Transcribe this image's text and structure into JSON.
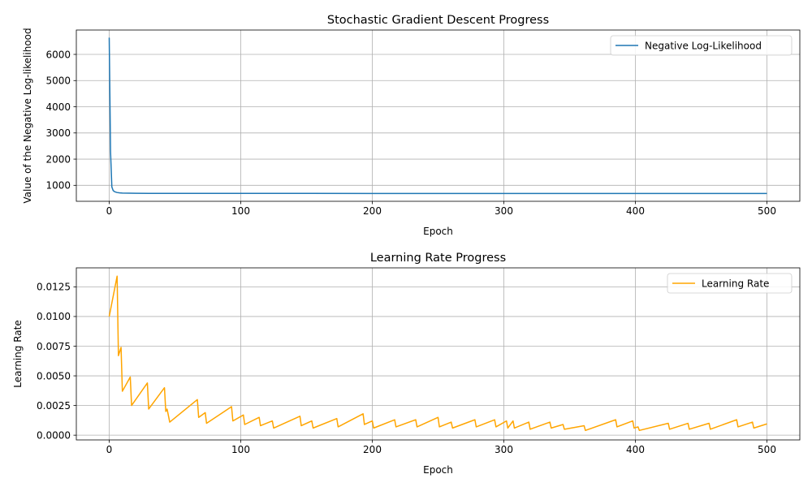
{
  "chart_data": [
    {
      "type": "line",
      "title": "Stochastic Gradient Descent Progress",
      "xlabel": "Epoch",
      "ylabel": "Value of the Negative Log-likelihood",
      "xlim": [
        -25,
        525
      ],
      "ylim": [
        390,
        6930
      ],
      "xticks": [
        0,
        100,
        200,
        300,
        400,
        500
      ],
      "xtick_labels": [
        "0",
        "100",
        "200",
        "300",
        "400",
        "500"
      ],
      "yticks": [
        1000,
        2000,
        3000,
        4000,
        5000,
        6000
      ],
      "ytick_labels": [
        "1000",
        "2000",
        "3000",
        "4000",
        "5000",
        "6000"
      ],
      "grid": true,
      "legend_position": "top-right",
      "series": [
        {
          "name": "Negative Log-Likelihood",
          "color": "#1f77b4",
          "x": [
            0,
            1,
            2,
            3,
            4,
            5,
            6,
            8,
            10,
            15,
            20,
            30,
            50,
            100,
            200,
            300,
            400,
            500
          ],
          "y": [
            6640,
            2300,
            940,
            800,
            760,
            740,
            725,
            712,
            705,
            698,
            695,
            693,
            692,
            691,
            690,
            690,
            690,
            690
          ]
        }
      ]
    },
    {
      "type": "line",
      "title": "Learning Rate Progress",
      "xlabel": "Epoch",
      "ylabel": "Learning Rate",
      "xlim": [
        -25,
        525
      ],
      "ylim": [
        -0.0004,
        0.0141
      ],
      "xticks": [
        0,
        100,
        200,
        300,
        400,
        500
      ],
      "xtick_labels": [
        "0",
        "100",
        "200",
        "300",
        "400",
        "500"
      ],
      "yticks": [
        0,
        0.0025,
        0.005,
        0.0075,
        0.01,
        0.0125
      ],
      "ytick_labels": [
        "0.0000",
        "0.0025",
        "0.0050",
        "0.0075",
        "0.0100",
        "0.0125"
      ],
      "grid": true,
      "legend_position": "top-right",
      "series": [
        {
          "name": "Learning Rate",
          "color": "#ffa500",
          "x": [
            0,
            6,
            7,
            9,
            10,
            16,
            17,
            29,
            30,
            42,
            43,
            44,
            46,
            67,
            68,
            73,
            74,
            93,
            94,
            102,
            103,
            114,
            115,
            124,
            125,
            145,
            146,
            154,
            155,
            173,
            174,
            193,
            194,
            200,
            201,
            217,
            218,
            233,
            234,
            250,
            251,
            260,
            261,
            278,
            279,
            293,
            294,
            302,
            303,
            307,
            308,
            319,
            320,
            335,
            336,
            345,
            346,
            361,
            362,
            385,
            386,
            398,
            399,
            402,
            403,
            425,
            426,
            440,
            441,
            456,
            457,
            477,
            478,
            489,
            490,
            500
          ],
          "y": [
            0.01,
            0.0134,
            0.0067,
            0.0074,
            0.0037,
            0.0049,
            0.0025,
            0.0044,
            0.0022,
            0.004,
            0.002,
            0.0022,
            0.0011,
            0.003,
            0.0015,
            0.0019,
            0.001,
            0.0024,
            0.0012,
            0.0017,
            0.0009,
            0.0015,
            0.0008,
            0.0012,
            0.0006,
            0.0016,
            0.0008,
            0.0012,
            0.0006,
            0.0014,
            0.0007,
            0.0018,
            0.0009,
            0.0012,
            0.0006,
            0.0013,
            0.0007,
            0.0013,
            0.0007,
            0.0015,
            0.0007,
            0.0011,
            0.0006,
            0.0013,
            0.0007,
            0.0013,
            0.0007,
            0.0012,
            0.0006,
            0.0012,
            0.0006,
            0.0011,
            0.0005,
            0.0011,
            0.0006,
            0.0009,
            0.0005,
            0.0008,
            0.0004,
            0.0013,
            0.0007,
            0.0012,
            0.0006,
            0.0007,
            0.0004,
            0.001,
            0.0005,
            0.001,
            0.0005,
            0.001,
            0.0005,
            0.0013,
            0.0007,
            0.0011,
            0.0006,
            0.00095
          ]
        }
      ]
    }
  ]
}
